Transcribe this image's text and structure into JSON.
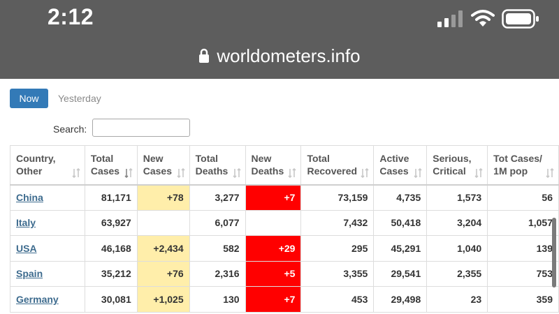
{
  "status_bar": {
    "time": "2:12"
  },
  "browser": {
    "url": "worldometers.info"
  },
  "tabs": {
    "now": "Now",
    "yesterday": "Yesterday"
  },
  "search": {
    "label": "Search:",
    "value": ""
  },
  "table": {
    "headers": [
      {
        "line1": "Country,",
        "line2": "Other",
        "sort": "sort-icon"
      },
      {
        "line1": "Total",
        "line2": "Cases",
        "sort": "sort-desc-icon"
      },
      {
        "line1": "New",
        "line2": "Cases",
        "sort": "sort-icon"
      },
      {
        "line1": "Total",
        "line2": "Deaths",
        "sort": "sort-icon"
      },
      {
        "line1": "New",
        "line2": "Deaths",
        "sort": "sort-icon"
      },
      {
        "line1": "Total",
        "line2": "Recovered",
        "sort": "sort-icon"
      },
      {
        "line1": "Active",
        "line2": "Cases",
        "sort": "sort-icon"
      },
      {
        "line1": "Serious,",
        "line2": "Critical",
        "sort": "sort-icon"
      },
      {
        "line1": "Tot Cases/",
        "line2": "1M pop",
        "sort": "sort-icon"
      }
    ],
    "rows": [
      {
        "country": "China",
        "total_cases": "81,171",
        "new_cases": "+78",
        "total_deaths": "3,277",
        "new_deaths": "+7",
        "total_recovered": "73,159",
        "active_cases": "4,735",
        "serious_critical": "1,573",
        "tot_cases_1m": "56"
      },
      {
        "country": "Italy",
        "total_cases": "63,927",
        "new_cases": "",
        "total_deaths": "6,077",
        "new_deaths": "",
        "total_recovered": "7,432",
        "active_cases": "50,418",
        "serious_critical": "3,204",
        "tot_cases_1m": "1,057"
      },
      {
        "country": "USA",
        "total_cases": "46,168",
        "new_cases": "+2,434",
        "total_deaths": "582",
        "new_deaths": "+29",
        "total_recovered": "295",
        "active_cases": "45,291",
        "serious_critical": "1,040",
        "tot_cases_1m": "139"
      },
      {
        "country": "Spain",
        "total_cases": "35,212",
        "new_cases": "+76",
        "total_deaths": "2,316",
        "new_deaths": "+5",
        "total_recovered": "3,355",
        "active_cases": "29,541",
        "serious_critical": "2,355",
        "tot_cases_1m": "753"
      },
      {
        "country": "Germany",
        "total_cases": "30,081",
        "new_cases": "+1,025",
        "total_deaths": "130",
        "new_deaths": "+7",
        "total_recovered": "453",
        "active_cases": "29,498",
        "serious_critical": "23",
        "tot_cases_1m": "359"
      }
    ]
  },
  "colors": {
    "chrome": "#5d5d5d",
    "accent": "#337ab7",
    "new_cases_bg": "#ffeeaa",
    "new_deaths_bg": "#ff0000",
    "link": "#3d6b8e"
  }
}
